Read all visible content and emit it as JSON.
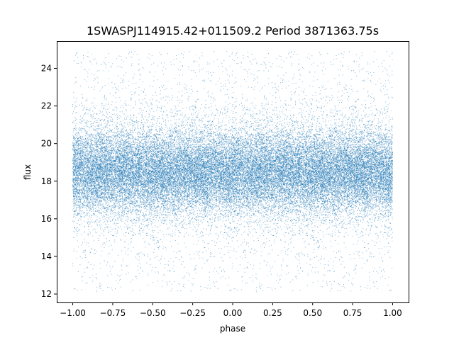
{
  "chart_data": {
    "type": "scatter",
    "title": "1SWASPJ114915.42+011509.2 Period 3871363.75s",
    "xlabel": "phase",
    "ylabel": "flux",
    "xlim": [
      -1.1,
      1.1
    ],
    "ylim": [
      11.55,
      25.45
    ],
    "x_ticks": [
      -1.0,
      -0.75,
      -0.5,
      -0.25,
      0.0,
      0.25,
      0.5,
      0.75,
      1.0
    ],
    "x_tick_labels": [
      "−1.00",
      "−0.75",
      "−0.50",
      "−0.25",
      "0.00",
      "0.25",
      "0.50",
      "0.75",
      "1.00"
    ],
    "y_ticks": [
      12,
      14,
      16,
      18,
      20,
      22,
      24
    ],
    "y_tick_labels": [
      "12",
      "14",
      "16",
      "18",
      "20",
      "22",
      "24"
    ],
    "grid": false,
    "legend": "none",
    "point_color": "#1f77b4",
    "series": [
      {
        "point_count_approx": 40000,
        "x_range": [
          -1.0,
          1.0
        ],
        "y_range": [
          12.1,
          24.9
        ],
        "dense_band": [
          17.0,
          20.0
        ],
        "median_flux": 18.5,
        "x_mirrored_about_zero": true
      }
    ]
  }
}
